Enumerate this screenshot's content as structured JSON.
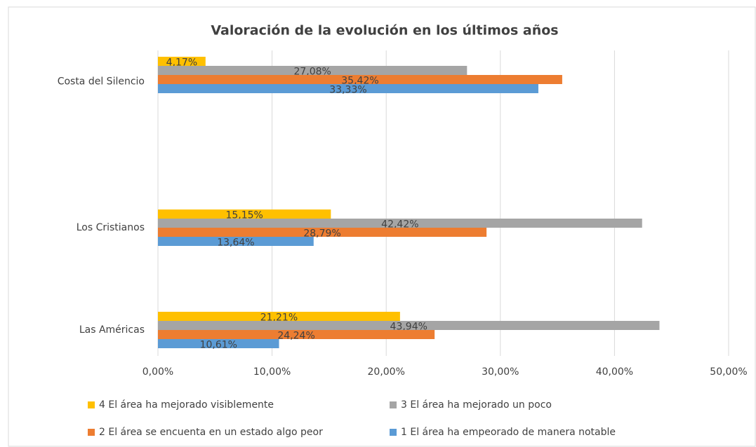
{
  "chart_data": {
    "type": "hbar",
    "title": "Valoración de la evolución en los últimos años",
    "categories": [
      "Costa del Silencio",
      "Los Cristianos",
      "Las Américas"
    ],
    "series": [
      {
        "name": "4  El área ha mejorado visiblemente",
        "color": "#ffc000",
        "values": [
          4.17,
          15.15,
          21.21
        ],
        "value_labels": [
          "4,17%",
          "15,15%",
          "21,21%"
        ]
      },
      {
        "name": "3 El área ha mejorado un poco",
        "color": "#a5a5a5",
        "values": [
          27.08,
          42.42,
          43.94
        ],
        "value_labels": [
          "27,08%",
          "42,42%",
          "43,94%"
        ]
      },
      {
        "name": "2 El área se encuenta en un estado algo peor",
        "color": "#ed7d31",
        "values": [
          35.42,
          28.79,
          24.24
        ],
        "value_labels": [
          "35,42%",
          "28,79%",
          "24,24%"
        ]
      },
      {
        "name": "1 El área ha empeorado de manera notable",
        "color": "#5b9bd5",
        "values": [
          33.33,
          13.64,
          10.61
        ],
        "value_labels": [
          "33,33%",
          "13,64%",
          "10,61%"
        ]
      }
    ],
    "xlim": [
      0,
      50
    ],
    "xticks": [
      {
        "value": 0,
        "label": "0,00%"
      },
      {
        "value": 10,
        "label": "10,00%"
      },
      {
        "value": 20,
        "label": "20,00%"
      },
      {
        "value": 30,
        "label": "30,00%"
      },
      {
        "value": 40,
        "label": "40,00%"
      },
      {
        "value": 50,
        "label": "50,00%"
      }
    ],
    "grid": true
  }
}
